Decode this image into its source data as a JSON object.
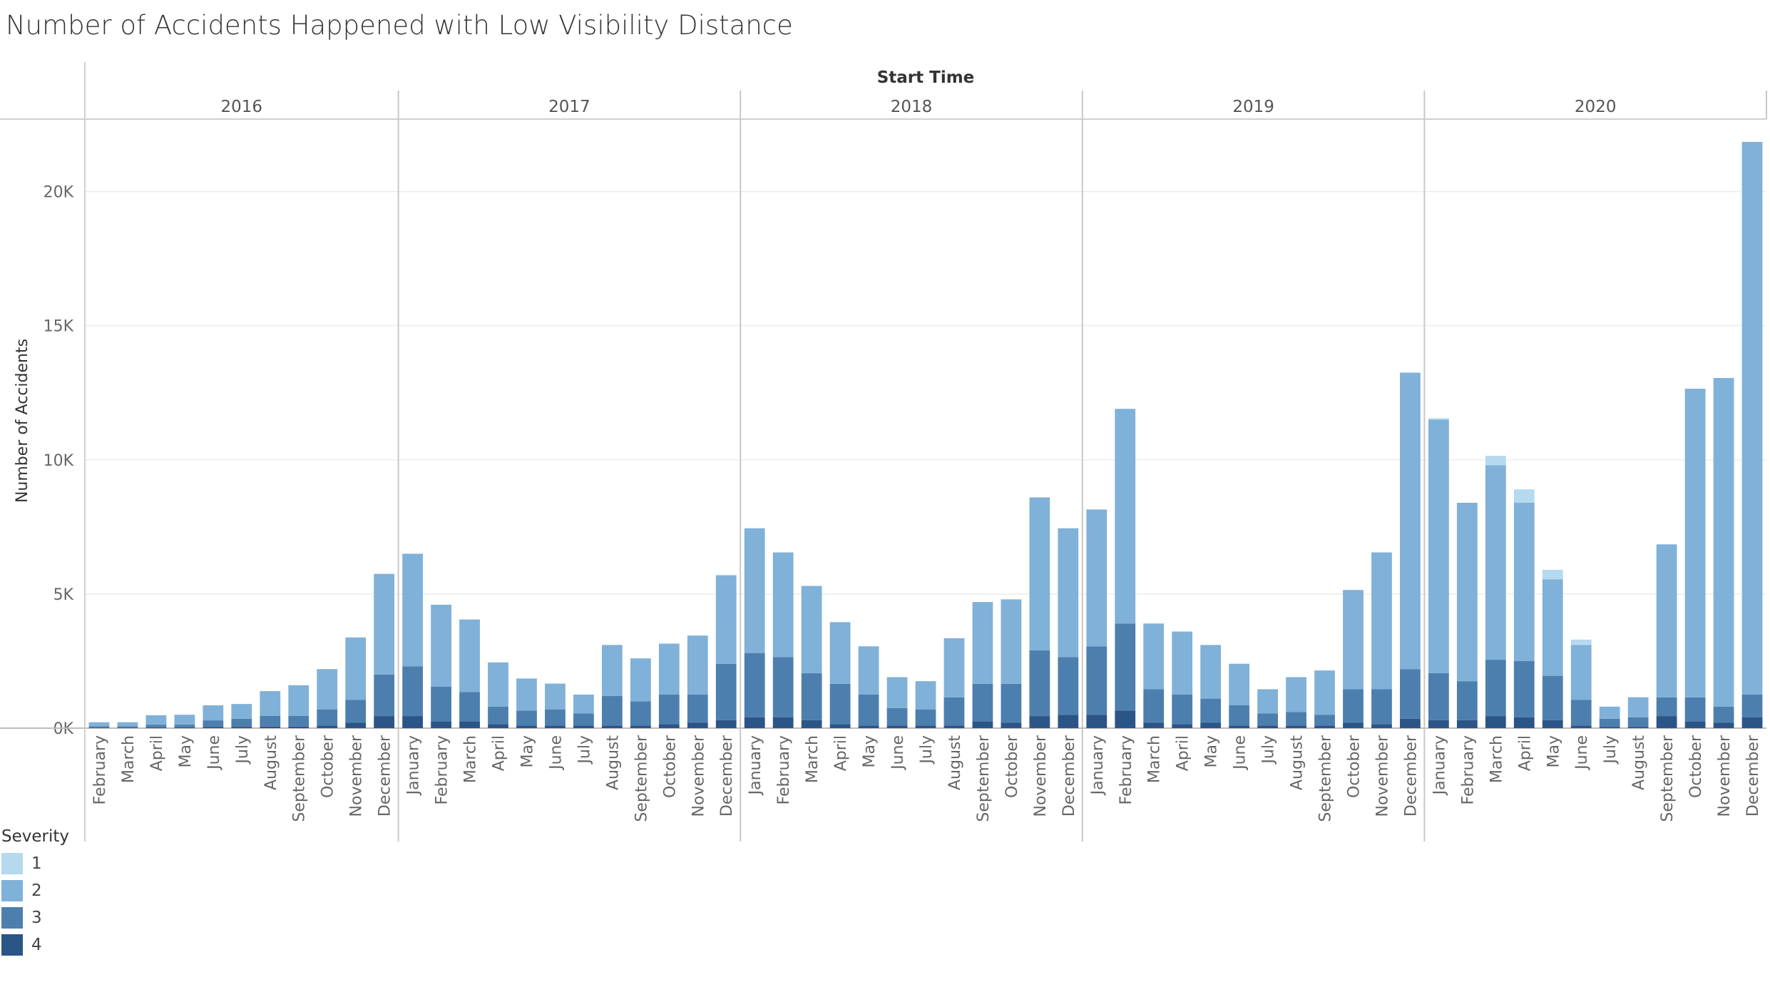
{
  "title": "Number of Accidents Happened with Low Visibility Distance",
  "colors": {
    "1": "#b5d9ef",
    "2": "#80b1d8",
    "3": "#4d7fae",
    "4": "#2b5587"
  },
  "legend": {
    "title": "Severity",
    "items": [
      {
        "label": "1",
        "color": "#b5d9ef"
      },
      {
        "label": "2",
        "color": "#80b1d8"
      },
      {
        "label": "3",
        "color": "#4d7fae"
      },
      {
        "label": "4",
        "color": "#2b5587"
      }
    ]
  },
  "chart_data": {
    "type": "bar",
    "stacked": true,
    "xlabel": "Start Time",
    "ylabel": "Number of Accidents",
    "ylim": [
      -400,
      22500
    ],
    "yticks": [
      0,
      5000,
      10000,
      15000,
      20000
    ],
    "ytick_labels": [
      "0K",
      "5K",
      "10K",
      "15K",
      "20K"
    ],
    "grid": true,
    "legend_position": "bottom-left",
    "series_order": [
      "4",
      "3",
      "2",
      "1"
    ],
    "years": [
      {
        "year": "2016",
        "months": [
          {
            "month": "February",
            "s4": 20,
            "s3": 50,
            "s2": 150,
            "s1": 0
          },
          {
            "month": "March",
            "s4": 20,
            "s3": 50,
            "s2": 150,
            "s1": 0
          },
          {
            "month": "April",
            "s4": 30,
            "s3": 100,
            "s2": 350,
            "s1": 0
          },
          {
            "month": "May",
            "s4": 30,
            "s3": 100,
            "s2": 370,
            "s1": 0
          },
          {
            "month": "June",
            "s4": 40,
            "s3": 250,
            "s2": 560,
            "s1": 0
          },
          {
            "month": "July",
            "s4": 50,
            "s3": 300,
            "s2": 550,
            "s1": 0
          },
          {
            "month": "August",
            "s4": 60,
            "s3": 400,
            "s2": 920,
            "s1": 0
          },
          {
            "month": "September",
            "s4": 60,
            "s3": 400,
            "s2": 1140,
            "s1": 0
          },
          {
            "month": "October",
            "s4": 100,
            "s3": 600,
            "s2": 1500,
            "s1": 0
          },
          {
            "month": "November",
            "s4": 200,
            "s3": 850,
            "s2": 2330,
            "s1": 0
          },
          {
            "month": "December",
            "s4": 450,
            "s3": 1550,
            "s2": 3750,
            "s1": 0
          }
        ]
      },
      {
        "year": "2017",
        "months": [
          {
            "month": "January",
            "s4": 450,
            "s3": 1850,
            "s2": 4200,
            "s1": 0
          },
          {
            "month": "February",
            "s4": 250,
            "s3": 1300,
            "s2": 3050,
            "s1": 0
          },
          {
            "month": "March",
            "s4": 250,
            "s3": 1100,
            "s2": 2700,
            "s1": 0
          },
          {
            "month": "April",
            "s4": 150,
            "s3": 650,
            "s2": 1650,
            "s1": 0
          },
          {
            "month": "May",
            "s4": 100,
            "s3": 550,
            "s2": 1200,
            "s1": 0
          },
          {
            "month": "June",
            "s4": 100,
            "s3": 600,
            "s2": 960,
            "s1": 0
          },
          {
            "month": "July",
            "s4": 100,
            "s3": 450,
            "s2": 700,
            "s1": 0
          },
          {
            "month": "August",
            "s4": 100,
            "s3": 1100,
            "s2": 1900,
            "s1": 0
          },
          {
            "month": "September",
            "s4": 100,
            "s3": 900,
            "s2": 1600,
            "s1": 0
          },
          {
            "month": "October",
            "s4": 150,
            "s3": 1100,
            "s2": 1900,
            "s1": 0
          },
          {
            "month": "November",
            "s4": 200,
            "s3": 1050,
            "s2": 2200,
            "s1": 0
          },
          {
            "month": "December",
            "s4": 300,
            "s3": 2100,
            "s2": 3300,
            "s1": 0
          }
        ]
      },
      {
        "year": "2018",
        "months": [
          {
            "month": "January",
            "s4": 400,
            "s3": 2400,
            "s2": 4650,
            "s1": 0
          },
          {
            "month": "February",
            "s4": 400,
            "s3": 2250,
            "s2": 3900,
            "s1": 0
          },
          {
            "month": "March",
            "s4": 300,
            "s3": 1750,
            "s2": 3250,
            "s1": 0
          },
          {
            "month": "April",
            "s4": 150,
            "s3": 1500,
            "s2": 2300,
            "s1": 0
          },
          {
            "month": "May",
            "s4": 100,
            "s3": 1150,
            "s2": 1800,
            "s1": 0
          },
          {
            "month": "June",
            "s4": 100,
            "s3": 650,
            "s2": 1150,
            "s1": 0
          },
          {
            "month": "July",
            "s4": 100,
            "s3": 600,
            "s2": 1050,
            "s1": 0
          },
          {
            "month": "August",
            "s4": 100,
            "s3": 1050,
            "s2": 2200,
            "s1": 0
          },
          {
            "month": "September",
            "s4": 250,
            "s3": 1400,
            "s2": 3050,
            "s1": 0
          },
          {
            "month": "October",
            "s4": 200,
            "s3": 1450,
            "s2": 3150,
            "s1": 0
          },
          {
            "month": "November",
            "s4": 450,
            "s3": 2450,
            "s2": 5700,
            "s1": 0
          },
          {
            "month": "December",
            "s4": 500,
            "s3": 2150,
            "s2": 4800,
            "s1": 0
          }
        ]
      },
      {
        "year": "2019",
        "months": [
          {
            "month": "January",
            "s4": 500,
            "s3": 2550,
            "s2": 5100,
            "s1": 0
          },
          {
            "month": "February",
            "s4": 650,
            "s3": 3250,
            "s2": 8000,
            "s1": 0
          },
          {
            "month": "March",
            "s4": 200,
            "s3": 1250,
            "s2": 2450,
            "s1": 0
          },
          {
            "month": "April",
            "s4": 150,
            "s3": 1100,
            "s2": 2350,
            "s1": 0
          },
          {
            "month": "May",
            "s4": 200,
            "s3": 900,
            "s2": 2000,
            "s1": 0
          },
          {
            "month": "June",
            "s4": 100,
            "s3": 750,
            "s2": 1550,
            "s1": 0
          },
          {
            "month": "July",
            "s4": 100,
            "s3": 450,
            "s2": 900,
            "s1": 0
          },
          {
            "month": "August",
            "s4": 100,
            "s3": 500,
            "s2": 1300,
            "s1": 0
          },
          {
            "month": "September",
            "s4": 100,
            "s3": 400,
            "s2": 1650,
            "s1": 0
          },
          {
            "month": "October",
            "s4": 200,
            "s3": 1250,
            "s2": 3700,
            "s1": 0
          },
          {
            "month": "November",
            "s4": 150,
            "s3": 1300,
            "s2": 5100,
            "s1": 0
          },
          {
            "month": "December",
            "s4": 350,
            "s3": 1850,
            "s2": 11050,
            "s1": 0
          }
        ]
      },
      {
        "year": "2020",
        "months": [
          {
            "month": "January",
            "s4": 300,
            "s3": 1750,
            "s2": 9450,
            "s1": 50
          },
          {
            "month": "February",
            "s4": 300,
            "s3": 1450,
            "s2": 6650,
            "s1": 0
          },
          {
            "month": "March",
            "s4": 450,
            "s3": 2100,
            "s2": 7250,
            "s1": 350
          },
          {
            "month": "April",
            "s4": 400,
            "s3": 2100,
            "s2": 5900,
            "s1": 500
          },
          {
            "month": "May",
            "s4": 300,
            "s3": 1650,
            "s2": 3600,
            "s1": 350
          },
          {
            "month": "June",
            "s4": 100,
            "s3": 950,
            "s2": 2050,
            "s1": 200
          },
          {
            "month": "July",
            "s4": 50,
            "s3": 300,
            "s2": 450,
            "s1": 0
          },
          {
            "month": "August",
            "s4": 50,
            "s3": 350,
            "s2": 750,
            "s1": 0
          },
          {
            "month": "September",
            "s4": 450,
            "s3": 700,
            "s2": 5700,
            "s1": 0
          },
          {
            "month": "October",
            "s4": 250,
            "s3": 900,
            "s2": 11500,
            "s1": 0
          },
          {
            "month": "November",
            "s4": 200,
            "s3": 600,
            "s2": 12250,
            "s1": 0
          },
          {
            "month": "December",
            "s4": 400,
            "s3": 850,
            "s2": 20600,
            "s1": 0
          }
        ]
      }
    ]
  }
}
